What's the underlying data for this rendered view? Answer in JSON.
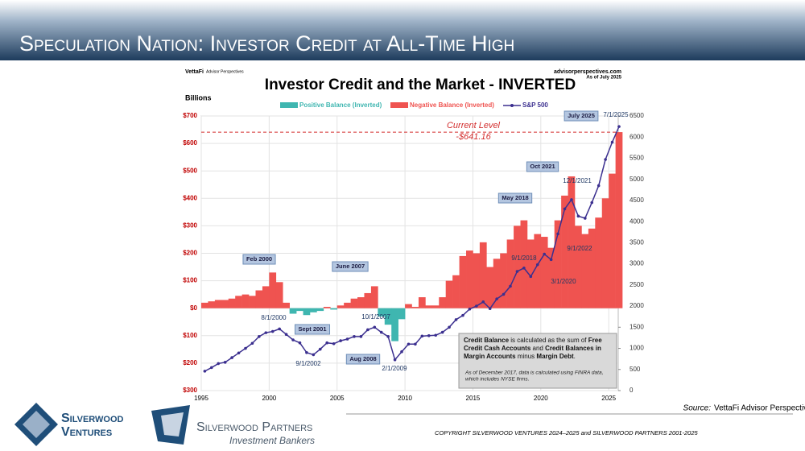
{
  "slide": {
    "title": "Speculation Nation: Investor Credit at All-Time High",
    "source_label": "Source:",
    "source": "VettaFi Advisor Perspectives",
    "copyright": "COPYRIGHT SILVERWOOD VENTURES 2024–2025 and SILVERWOOD PARTNERS 2001-2025",
    "logo1": [
      "Silverwood",
      "Ventures"
    ],
    "logo2": [
      "Silverwood Partners",
      "Investment Bankers"
    ]
  },
  "chart_data": {
    "type": "bar_line",
    "title": "Investor Credit and the Market - INVERTED",
    "brand": "VettaFi",
    "brand_sub": "Advisor Perspectives",
    "site": "advisorperspectives.com",
    "as_of": "As of July 2025",
    "y_label": "Billions",
    "xlim": [
      1995,
      2025.7
    ],
    "xticks": [
      1995,
      2000,
      2005,
      2010,
      2015,
      2020,
      2025
    ],
    "ylim": [
      -300,
      700
    ],
    "yticks": [
      {
        "value": 700,
        "label": "$700"
      },
      {
        "value": 600,
        "label": "$600"
      },
      {
        "value": 500,
        "label": "$500"
      },
      {
        "value": 400,
        "label": "$400"
      },
      {
        "value": 300,
        "label": "$300"
      },
      {
        "value": 200,
        "label": "$200"
      },
      {
        "value": 100,
        "label": "$100"
      },
      {
        "value": 0,
        "label": "$0"
      },
      {
        "value": -100,
        "label": "$100"
      },
      {
        "value": -200,
        "label": "$200"
      },
      {
        "value": -300,
        "label": "$300"
      }
    ],
    "y2lim": [
      0,
      6500
    ],
    "y2ticks": [
      0,
      500,
      1000,
      1500,
      2000,
      2500,
      3000,
      3500,
      4000,
      4500,
      5000,
      5500,
      6000,
      6500
    ],
    "grid": true,
    "x": [
      1995,
      1995.5,
      1996,
      1996.5,
      1997,
      1997.5,
      1998,
      1998.5,
      1999,
      1999.5,
      2000,
      2000.5,
      2001,
      2001.5,
      2002,
      2002.5,
      2003,
      2003.5,
      2004,
      2004.5,
      2005,
      2005.5,
      2006,
      2006.5,
      2007,
      2007.5,
      2008,
      2008.5,
      2009,
      2009.5,
      2010,
      2010.5,
      2011,
      2011.5,
      2012,
      2012.5,
      2013,
      2013.5,
      2014,
      2014.5,
      2015,
      2015.5,
      2016,
      2016.5,
      2017,
      2017.5,
      2018,
      2018.5,
      2019,
      2019.5,
      2020,
      2020.5,
      2021,
      2021.5,
      2022,
      2022.5,
      2023,
      2023.5,
      2024,
      2024.5,
      2025,
      2025.5
    ],
    "series": [
      {
        "name": "Positive Balance (Inverted)",
        "color": "#3fb6b0",
        "type": "bar",
        "values": [
          null,
          null,
          null,
          null,
          null,
          null,
          null,
          null,
          null,
          null,
          null,
          null,
          null,
          -20,
          -10,
          -25,
          -15,
          -10,
          null,
          -5,
          null,
          null,
          null,
          null,
          null,
          null,
          -30,
          -60,
          -120,
          -40,
          null,
          null,
          null,
          null,
          null,
          null,
          null,
          null,
          null,
          null,
          null,
          null,
          null,
          null,
          null,
          null,
          null,
          null,
          null,
          null,
          null,
          null,
          null,
          null,
          null,
          null,
          null,
          null,
          null,
          null,
          null,
          null
        ]
      },
      {
        "name": "Negative Balance (Inverted)",
        "color": "#ef5350",
        "type": "bar",
        "values": [
          20,
          25,
          30,
          30,
          35,
          45,
          50,
          45,
          65,
          80,
          130,
          95,
          20,
          null,
          null,
          null,
          null,
          null,
          5,
          null,
          10,
          20,
          35,
          40,
          55,
          80,
          null,
          null,
          null,
          null,
          15,
          5,
          40,
          10,
          10,
          40,
          100,
          120,
          190,
          210,
          200,
          240,
          150,
          180,
          200,
          250,
          300,
          320,
          250,
          270,
          260,
          220,
          320,
          410,
          480,
          300,
          270,
          290,
          330,
          400,
          490,
          641.16
        ]
      },
      {
        "name": "S&P 500",
        "color": "#3b2f8f",
        "type": "line",
        "axis": "y2",
        "values": [
          460,
          545,
          640,
          670,
          780,
          890,
          1000,
          1120,
          1280,
          1370,
          1400,
          1460,
          1330,
          1200,
          1130,
          900,
          850,
          980,
          1130,
          1110,
          1180,
          1220,
          1280,
          1280,
          1440,
          1500,
          1380,
          1280,
          730,
          920,
          1100,
          1100,
          1290,
          1300,
          1310,
          1380,
          1500,
          1680,
          1780,
          1930,
          2000,
          2100,
          1940,
          2170,
          2280,
          2470,
          2820,
          2900,
          2700,
          2980,
          3230,
          3100,
          3710,
          4300,
          4520,
          4130,
          4080,
          4450,
          4850,
          5470,
          5880,
          6250
        ]
      }
    ],
    "current_level_title": "Current Level",
    "current_level_label": "-$641.16",
    "callouts": [
      "Feb 2000",
      "June 2007",
      "Aug 2008",
      "May 2018",
      "Oct 2021",
      "July 2025",
      "Sept 2001"
    ],
    "dates": [
      "8/1/2000",
      "9/1/2002",
      "10/1/2007",
      "2/1/2009",
      "9/1/2018",
      "3/1/2020",
      "12/1/2021",
      "9/1/2022",
      "7/1/2025"
    ],
    "note_rows": [
      [
        "Credit Balance",
        " is calculated as the sum of ",
        "Free"
      ],
      [
        "Credit Cash Accounts",
        " and ",
        "Credit Balances in"
      ],
      [
        "Margin Accounts",
        " minus ",
        "Margin Debt",
        "."
      ]
    ],
    "note_italic": [
      "As of December 2017, data is calculated using FINRA data,",
      "which includes NYSE firms."
    ]
  }
}
